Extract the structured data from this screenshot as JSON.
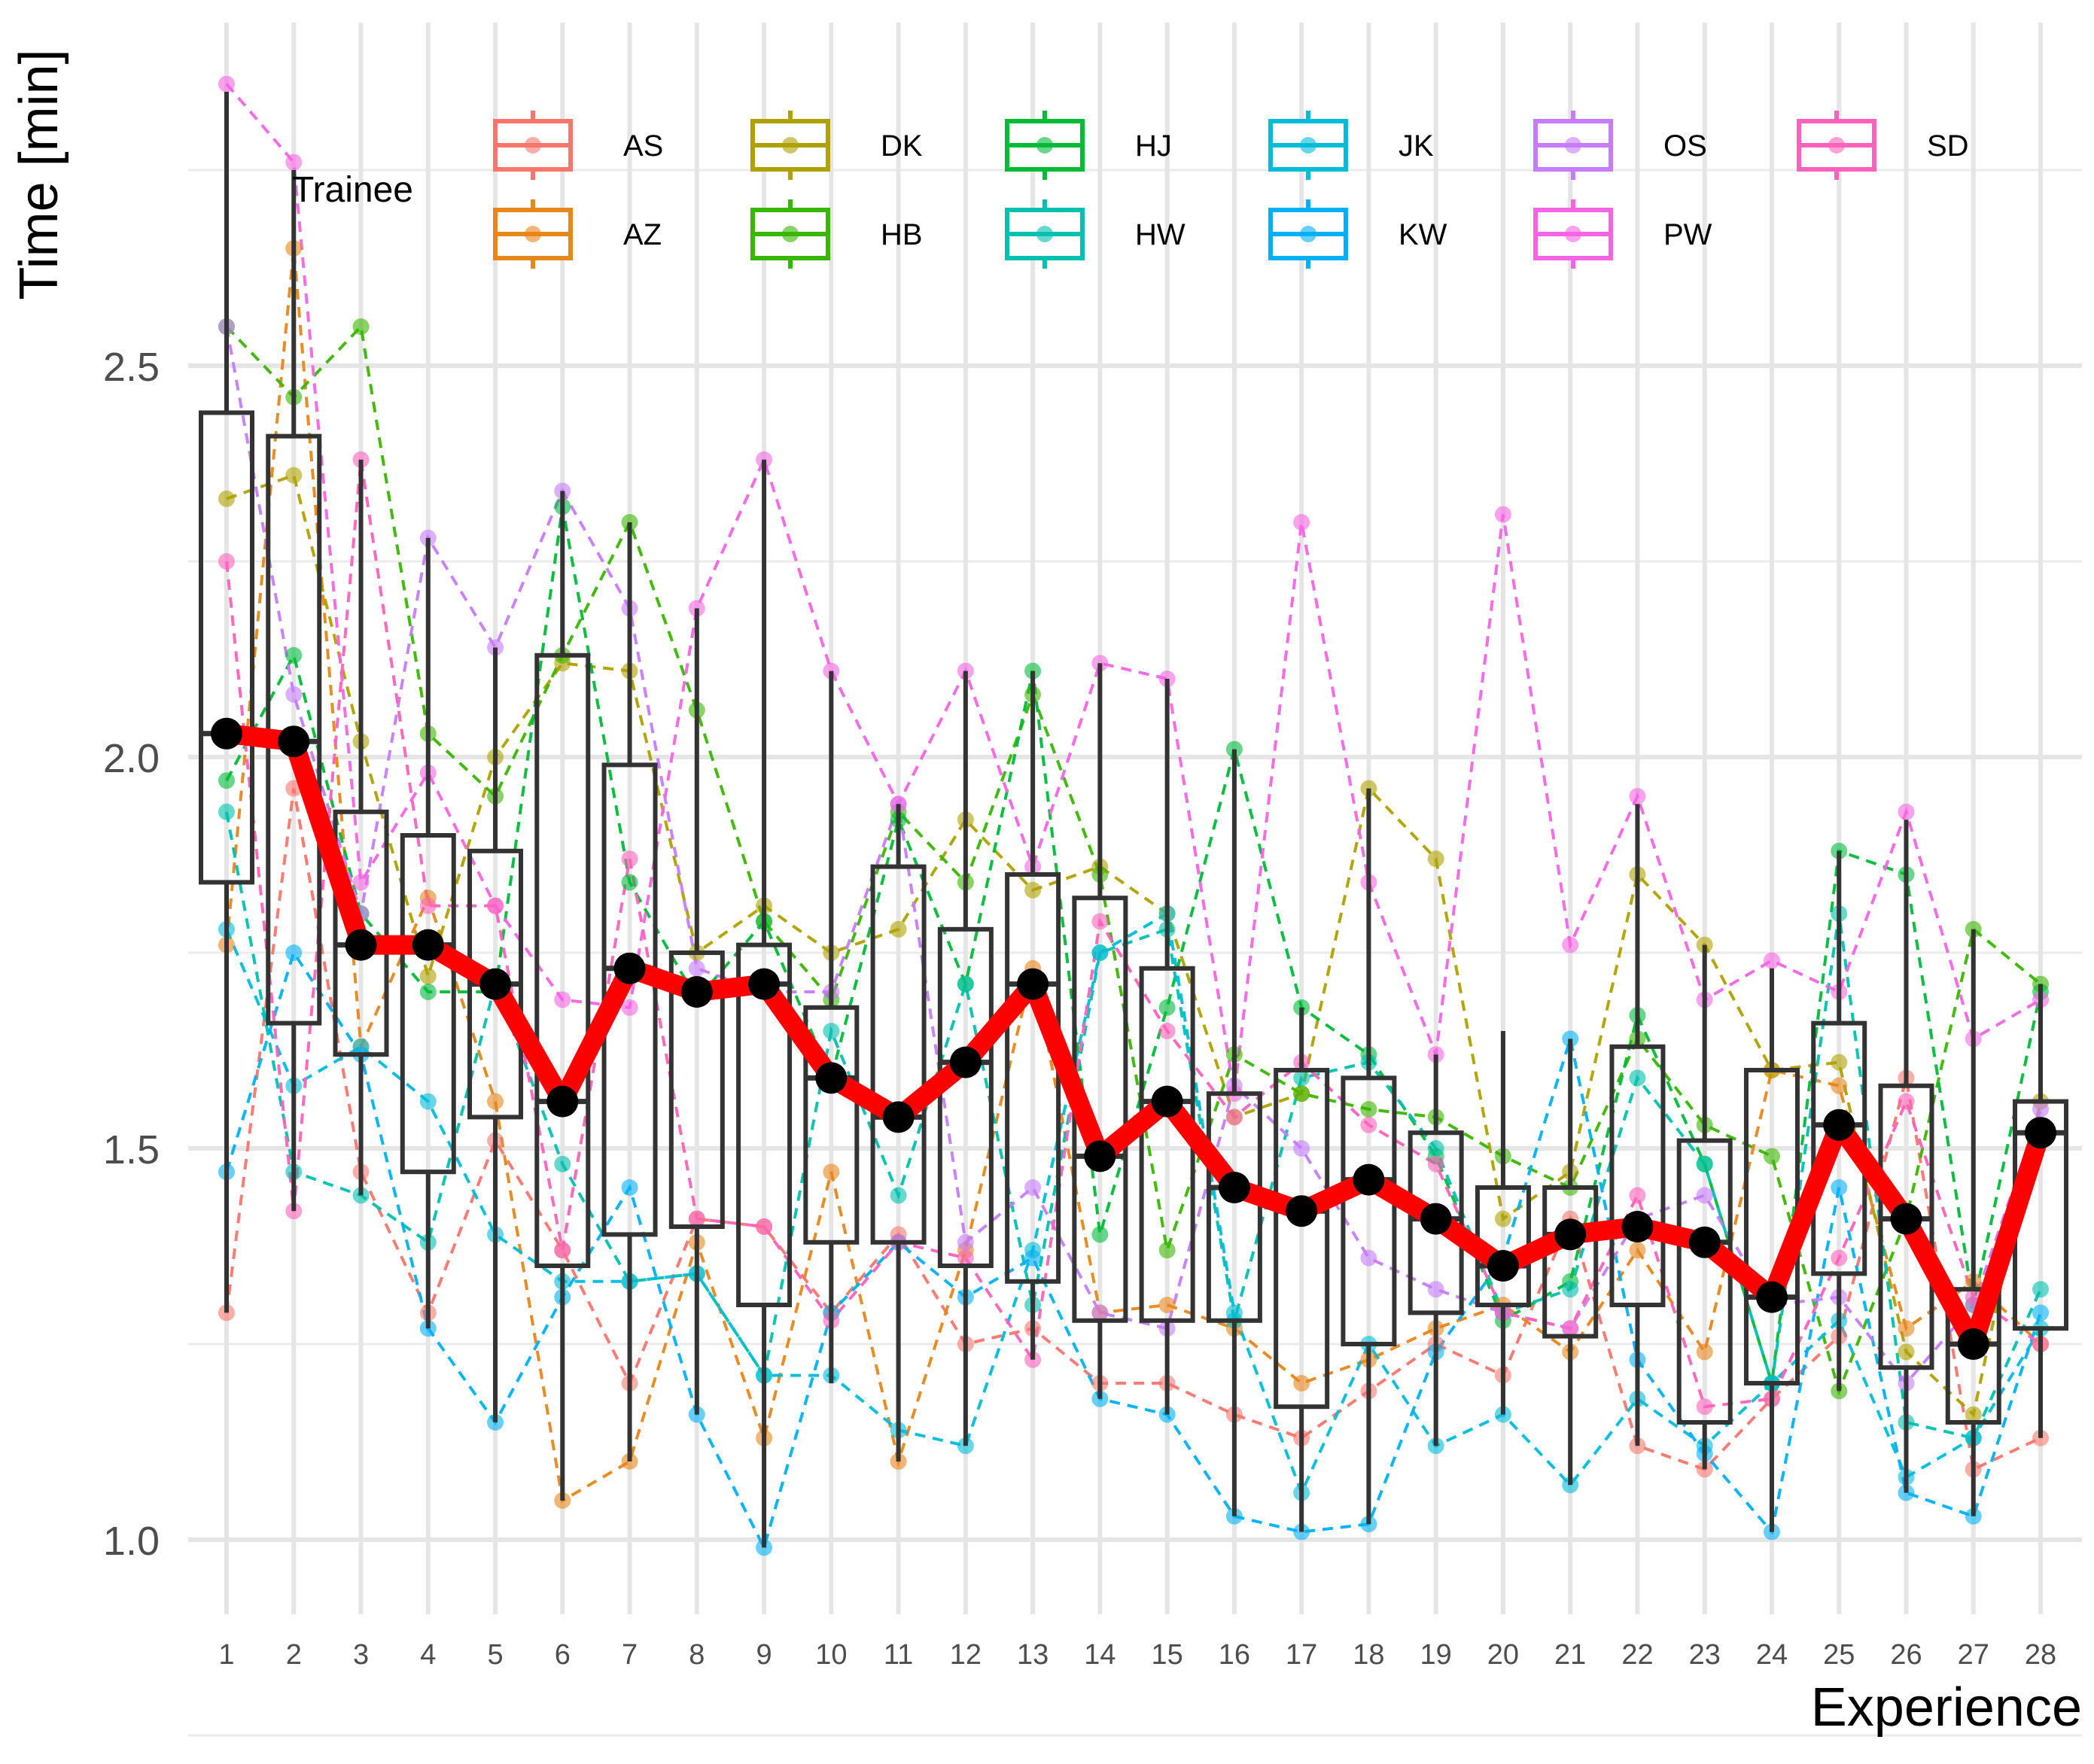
{
  "chart_data": {
    "type": "boxplot+line",
    "xlabel": "Experience",
    "ylabel": "Time [min]",
    "ylim": [
      0.9,
      2.88
    ],
    "y_ticks": [
      1.0,
      1.5,
      2.0,
      2.5
    ],
    "y_tick_labels": [
      "1.0",
      "1.5",
      "2.0",
      "2.5"
    ],
    "x": [
      1,
      2,
      3,
      4,
      5,
      6,
      7,
      8,
      9,
      10,
      11,
      12,
      13,
      14,
      15,
      16,
      17,
      18,
      19,
      20,
      21,
      22,
      23,
      24,
      25,
      26,
      27,
      28
    ],
    "x_tick_labels": [
      "1",
      "2",
      "3",
      "4",
      "5",
      "6",
      "7",
      "8",
      "9",
      "10",
      "11",
      "12",
      "13",
      "14",
      "15",
      "16",
      "17",
      "18",
      "19",
      "20",
      "21",
      "22",
      "23",
      "24",
      "25",
      "26",
      "27",
      "28"
    ],
    "legend": {
      "title": "Trainee",
      "position": "top",
      "entries": [
        {
          "label": "AS",
          "color": "#F8766D"
        },
        {
          "label": "AZ",
          "color": "#E7861B"
        },
        {
          "label": "DK",
          "color": "#AFA100"
        },
        {
          "label": "HB",
          "color": "#39B600"
        },
        {
          "label": "HJ",
          "color": "#00BA38"
        },
        {
          "label": "HW",
          "color": "#00C0AF"
        },
        {
          "label": "JK",
          "color": "#00BCD8"
        },
        {
          "label": "KW",
          "color": "#00B0F6"
        },
        {
          "label": "OS",
          "color": "#C77CFF"
        },
        {
          "label": "PW",
          "color": "#F564E3"
        },
        {
          "label": "SD",
          "color": "#FF62BC"
        }
      ]
    },
    "boxplots": [
      {
        "x": 1,
        "whisker_low": 1.29,
        "q1": 1.84,
        "median": 2.03,
        "q3": 2.44,
        "whisker_high": 2.85
      },
      {
        "x": 2,
        "whisker_low": 1.42,
        "q1": 1.66,
        "median": 2.02,
        "q3": 2.41,
        "whisker_high": 2.75
      },
      {
        "x": 3,
        "whisker_low": 1.44,
        "q1": 1.62,
        "median": 1.76,
        "q3": 1.93,
        "whisker_high": 2.38
      },
      {
        "x": 4,
        "whisker_low": 1.27,
        "q1": 1.47,
        "median": 1.76,
        "q3": 1.9,
        "whisker_high": 2.28
      },
      {
        "x": 5,
        "whisker_low": 1.15,
        "q1": 1.54,
        "median": 1.71,
        "q3": 1.88,
        "whisker_high": 2.14
      },
      {
        "x": 6,
        "whisker_low": 1.05,
        "q1": 1.35,
        "median": 1.56,
        "q3": 2.13,
        "whisker_high": 2.34
      },
      {
        "x": 7,
        "whisker_low": 1.1,
        "q1": 1.39,
        "median": 1.73,
        "q3": 1.99,
        "whisker_high": 2.3
      },
      {
        "x": 8,
        "whisker_low": 1.16,
        "q1": 1.4,
        "median": 1.7,
        "q3": 1.75,
        "whisker_high": 2.19
      },
      {
        "x": 9,
        "whisker_low": 0.99,
        "q1": 1.3,
        "median": 1.71,
        "q3": 1.76,
        "whisker_high": 2.38
      },
      {
        "x": 10,
        "whisker_low": 1.2,
        "q1": 1.38,
        "median": 1.59,
        "q3": 1.68,
        "whisker_high": 2.11
      },
      {
        "x": 11,
        "whisker_low": 1.1,
        "q1": 1.38,
        "median": 1.54,
        "q3": 1.86,
        "whisker_high": 1.94
      },
      {
        "x": 12,
        "whisker_low": 1.12,
        "q1": 1.35,
        "median": 1.61,
        "q3": 1.78,
        "whisker_high": 2.11
      },
      {
        "x": 13,
        "whisker_low": 1.23,
        "q1": 1.33,
        "median": 1.71,
        "q3": 1.85,
        "whisker_high": 2.11
      },
      {
        "x": 14,
        "whisker_low": 1.18,
        "q1": 1.28,
        "median": 1.49,
        "q3": 1.82,
        "whisker_high": 2.12
      },
      {
        "x": 15,
        "whisker_low": 1.16,
        "q1": 1.28,
        "median": 1.56,
        "q3": 1.73,
        "whisker_high": 2.1
      },
      {
        "x": 16,
        "whisker_low": 1.03,
        "q1": 1.28,
        "median": 1.45,
        "q3": 1.57,
        "whisker_high": 2.01
      },
      {
        "x": 17,
        "whisker_low": 1.01,
        "q1": 1.17,
        "median": 1.42,
        "q3": 1.6,
        "whisker_high": 1.68
      },
      {
        "x": 18,
        "whisker_low": 1.02,
        "q1": 1.25,
        "median": 1.46,
        "q3": 1.59,
        "whisker_high": 1.96
      },
      {
        "x": 19,
        "whisker_low": 1.12,
        "q1": 1.29,
        "median": 1.41,
        "q3": 1.52,
        "whisker_high": 1.62
      },
      {
        "x": 20,
        "whisker_low": 1.16,
        "q1": 1.3,
        "median": 1.35,
        "q3": 1.45,
        "whisker_high": 1.65
      },
      {
        "x": 21,
        "whisker_low": 1.07,
        "q1": 1.26,
        "median": 1.39,
        "q3": 1.45,
        "whisker_high": 1.64
      },
      {
        "x": 22,
        "whisker_low": 1.12,
        "q1": 1.3,
        "median": 1.4,
        "q3": 1.63,
        "whisker_high": 1.94
      },
      {
        "x": 23,
        "whisker_low": 1.09,
        "q1": 1.15,
        "median": 1.38,
        "q3": 1.51,
        "whisker_high": 1.76
      },
      {
        "x": 24,
        "whisker_low": 1.01,
        "q1": 1.2,
        "median": 1.31,
        "q3": 1.6,
        "whisker_high": 1.73
      },
      {
        "x": 25,
        "whisker_low": 1.19,
        "q1": 1.34,
        "median": 1.53,
        "q3": 1.66,
        "whisker_high": 1.88
      },
      {
        "x": 26,
        "whisker_low": 1.06,
        "q1": 1.22,
        "median": 1.41,
        "q3": 1.58,
        "whisker_high": 1.92
      },
      {
        "x": 27,
        "whisker_low": 1.03,
        "q1": 1.15,
        "median": 1.25,
        "q3": 1.32,
        "whisker_high": 1.78
      },
      {
        "x": 28,
        "whisker_low": 1.13,
        "q1": 1.27,
        "median": 1.52,
        "q3": 1.56,
        "whisker_high": 1.71
      }
    ],
    "median_line": {
      "color": "#FF0000",
      "values": [
        2.03,
        2.02,
        1.76,
        1.76,
        1.71,
        1.56,
        1.73,
        1.7,
        1.71,
        1.59,
        1.54,
        1.61,
        1.71,
        1.49,
        1.56,
        1.45,
        1.42,
        1.46,
        1.41,
        1.35,
        1.39,
        1.4,
        1.38,
        1.31,
        1.53,
        1.41,
        1.25,
        1.52
      ]
    },
    "series": [
      {
        "name": "AS",
        "color": "#F8766D",
        "values": [
          1.29,
          1.96,
          1.47,
          1.29,
          1.51,
          1.37,
          1.2,
          1.41,
          1.4,
          1.29,
          1.39,
          1.25,
          1.27,
          1.2,
          1.2,
          1.16,
          1.13,
          1.19,
          1.25,
          1.21,
          1.41,
          1.12,
          1.09,
          1.18,
          1.26,
          1.59,
          1.09,
          1.13
        ]
      },
      {
        "name": "AZ",
        "color": "#E7861B",
        "values": [
          1.76,
          2.65,
          1.63,
          1.82,
          1.56,
          1.05,
          1.1,
          1.38,
          1.13,
          1.47,
          1.1,
          1.37,
          1.73,
          1.29,
          1.3,
          1.27,
          1.2,
          1.23,
          1.27,
          1.3,
          1.24,
          1.37,
          1.24,
          1.6,
          1.58,
          1.27,
          1.33,
          1.25
        ]
      },
      {
        "name": "DK",
        "color": "#AFA100",
        "values": [
          2.33,
          2.36,
          2.02,
          1.72,
          2.0,
          2.12,
          2.11,
          1.75,
          1.81,
          1.75,
          1.78,
          1.92,
          1.83,
          1.86,
          1.8,
          1.54,
          1.57,
          1.96,
          1.87,
          1.41,
          1.47,
          1.85,
          1.76,
          1.6,
          1.61,
          1.24,
          1.16,
          1.56
        ]
      },
      {
        "name": "HB",
        "color": "#39B600",
        "values": [
          2.55,
          2.46,
          2.55,
          2.03,
          1.95,
          2.13,
          2.3,
          2.06,
          1.79,
          1.69,
          1.93,
          1.84,
          2.08,
          1.85,
          1.37,
          1.62,
          1.57,
          1.55,
          1.54,
          1.49,
          1.45,
          1.64,
          1.53,
          1.49,
          1.19,
          1.41,
          1.78,
          1.71
        ]
      },
      {
        "name": "HJ",
        "color": "#00BA38",
        "values": [
          1.97,
          2.13,
          1.8,
          1.7,
          1.7,
          2.32,
          1.84,
          1.69,
          1.79,
          1.59,
          1.92,
          1.71,
          2.11,
          1.39,
          1.68,
          2.01,
          1.68,
          1.62,
          1.49,
          1.28,
          1.33,
          1.67,
          1.48,
          1.2,
          1.88,
          1.85,
          1.3,
          1.7
        ]
      },
      {
        "name": "HW",
        "color": "#00C0AF",
        "values": [
          1.93,
          1.47,
          1.44,
          1.38,
          1.71,
          1.48,
          1.33,
          1.34,
          1.21,
          1.65,
          1.44,
          1.71,
          1.3,
          1.75,
          1.78,
          1.28,
          1.59,
          1.61,
          1.5,
          1.29,
          1.32,
          1.59,
          1.48,
          1.2,
          1.8,
          1.15,
          1.13,
          1.32
        ]
      },
      {
        "name": "JK",
        "color": "#00BCD8",
        "values": [
          1.78,
          1.58,
          1.63,
          1.56,
          1.39,
          1.33,
          1.33,
          1.34,
          1.21,
          1.21,
          1.14,
          1.12,
          1.37,
          1.75,
          1.8,
          1.29,
          1.06,
          1.25,
          1.12,
          1.16,
          1.07,
          1.18,
          1.12,
          1.2,
          1.28,
          1.08,
          1.13,
          1.27
        ]
      },
      {
        "name": "KW",
        "color": "#00B0F6",
        "values": [
          1.47,
          1.75,
          1.62,
          1.27,
          1.15,
          1.31,
          1.45,
          1.16,
          0.99,
          1.29,
          1.38,
          1.31,
          1.36,
          1.18,
          1.16,
          1.03,
          1.01,
          1.02,
          1.24,
          1.36,
          1.64,
          1.23,
          1.11,
          1.01,
          1.45,
          1.06,
          1.03,
          1.29
        ]
      },
      {
        "name": "OS",
        "color": "#C77CFF",
        "values": [
          2.55,
          2.08,
          1.8,
          2.28,
          2.14,
          2.34,
          2.19,
          1.73,
          1.7,
          1.7,
          1.94,
          1.38,
          1.45,
          1.29,
          1.27,
          1.58,
          1.5,
          1.36,
          1.32,
          1.29,
          1.27,
          1.41,
          1.44,
          1.3,
          1.31,
          1.2,
          1.3,
          1.55
        ]
      },
      {
        "name": "PW",
        "color": "#F564E3",
        "values": [
          2.86,
          2.76,
          1.84,
          1.98,
          1.81,
          1.69,
          1.68,
          2.19,
          2.38,
          2.11,
          1.94,
          2.11,
          1.86,
          2.12,
          2.1,
          1.57,
          2.3,
          1.84,
          1.62,
          2.31,
          1.76,
          1.95,
          1.69,
          1.74,
          1.7,
          1.93,
          1.64,
          1.69
        ]
      },
      {
        "name": "SD",
        "color": "#FF62BC",
        "values": [
          2.25,
          1.42,
          2.38,
          1.81,
          1.81,
          1.37,
          1.87,
          1.41,
          1.4,
          1.28,
          1.38,
          1.36,
          1.23,
          1.79,
          1.65,
          1.54,
          1.61,
          1.53,
          1.48,
          1.29,
          1.27,
          1.44,
          1.17,
          1.18,
          1.36,
          1.56,
          1.31,
          1.25
        ]
      }
    ]
  }
}
